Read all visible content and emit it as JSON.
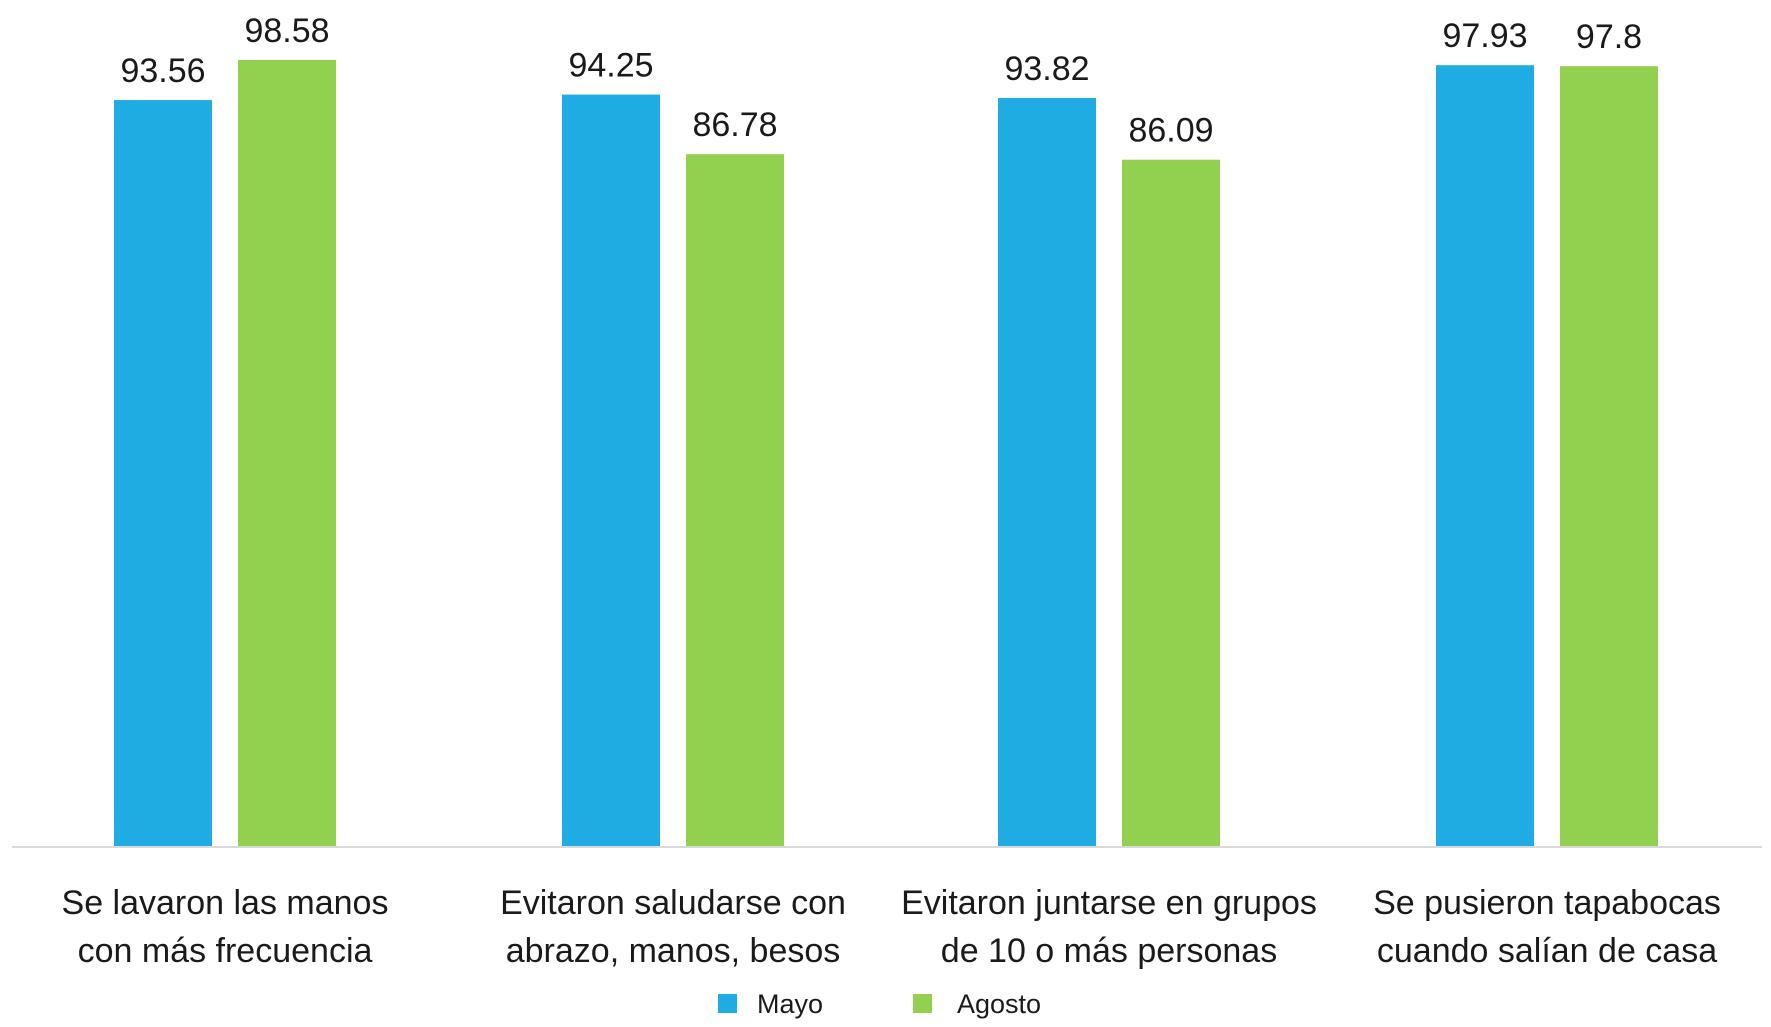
{
  "chart_data": {
    "type": "bar",
    "categories": [
      [
        "Se lavaron las manos",
        "con más frecuencia"
      ],
      [
        "Evitaron saludarse con",
        "abrazo, manos, besos"
      ],
      [
        "Evitaron juntarse en grupos",
        "de 10 o más personas"
      ],
      [
        "Se pusieron tapabocas",
        "cuando salían de casa"
      ]
    ],
    "series": [
      {
        "name": "Mayo",
        "color": "#1FACE3",
        "values": [
          93.56,
          94.25,
          93.82,
          97.93
        ],
        "labels": [
          "93.56",
          "94.25",
          "93.82",
          "97.93"
        ]
      },
      {
        "name": "Agosto",
        "color": "#92D050",
        "values": [
          98.58,
          86.78,
          86.09,
          97.8
        ],
        "labels": [
          "98.58",
          "86.78",
          "86.09",
          "97.8"
        ]
      }
    ],
    "axis_color": "#D9D9D9",
    "grid": false,
    "legend_position": "bottom"
  }
}
